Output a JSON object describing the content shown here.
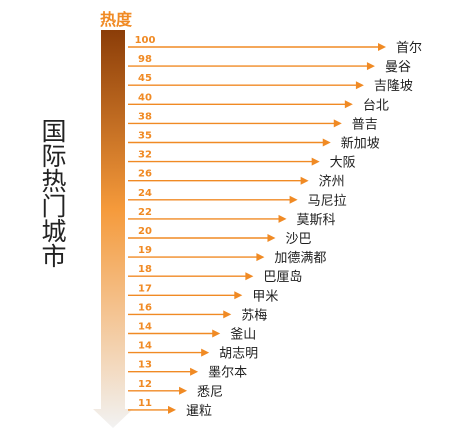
{
  "chart_data": {
    "type": "bar",
    "title": "国际热门城市",
    "value_label": "热度",
    "categories": [
      "首尔",
      "曼谷",
      "吉隆坡",
      "台北",
      "普吉",
      "新加坡",
      "大阪",
      "济州",
      "马尼拉",
      "莫斯科",
      "沙巴",
      "加德满都",
      "巴厘岛",
      "甲米",
      "苏梅",
      "釜山",
      "胡志明",
      "墨尔本",
      "悉尼",
      "暹粒"
    ],
    "values": [
      100,
      98,
      45,
      40,
      38,
      35,
      32,
      26,
      24,
      22,
      20,
      19,
      18,
      17,
      16,
      14,
      14,
      13,
      12,
      11
    ],
    "colors": {
      "arrow": "#f08a24",
      "value_text": "#f08a24",
      "label_text": "#1f1f1f",
      "gradient_top": "#8b3d08",
      "gradient_mid": "#f59a3b",
      "gradient_bottom": "#f2f2f2"
    }
  }
}
